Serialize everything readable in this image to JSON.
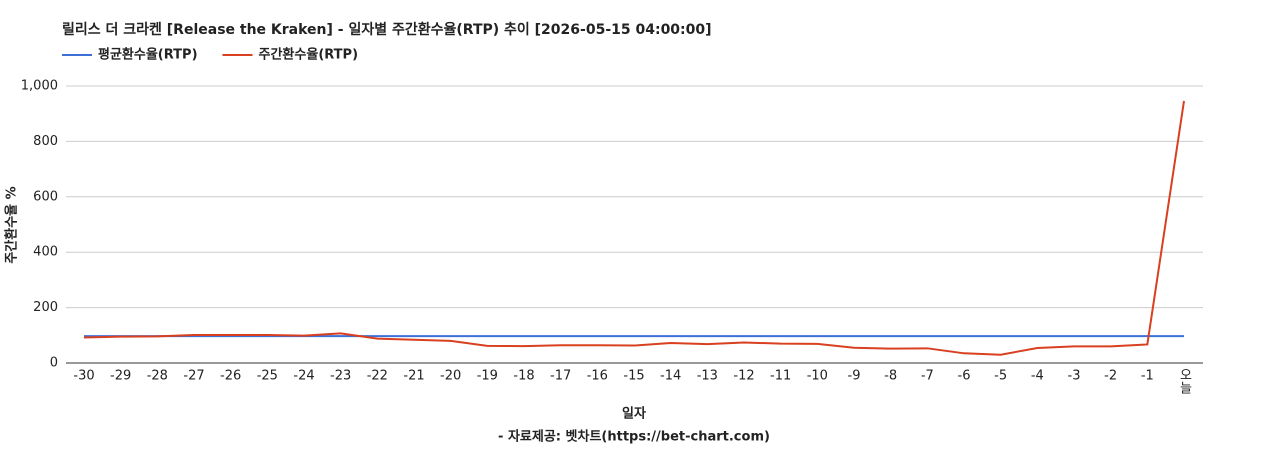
{
  "chart_data": {
    "type": "line",
    "title": "릴리스 더 크라켄 [Release the Kraken] - 일자별 주간환수율(RTP) 추이 [2026-05-15 04:00:00]",
    "x_label": "일자",
    "y_label": "주간환수율 %",
    "source": "- 자료제공: 벳차트(https://bet-chart.com)",
    "categories": [
      "-30",
      "-29",
      "-28",
      "-27",
      "-26",
      "-25",
      "-24",
      "-23",
      "-22",
      "-21",
      "-20",
      "-19",
      "-18",
      "-17",
      "-16",
      "-15",
      "-14",
      "-13",
      "-12",
      "-11",
      "-10",
      "-9",
      "-8",
      "-7",
      "-6",
      "-5",
      "-4",
      "-3",
      "-2",
      "-1",
      "오늘"
    ],
    "series": [
      {
        "name": "평균환수율(RTP)",
        "color": "#3c6fd8",
        "values": [
          97,
          97,
          97,
          97,
          97,
          97,
          97,
          97,
          97,
          97,
          97,
          97,
          97,
          97,
          97,
          97,
          97,
          97,
          97,
          97,
          97,
          97,
          97,
          97,
          97,
          97,
          97,
          97,
          97,
          97,
          97
        ]
      },
      {
        "name": "주간환수율(RTP)",
        "color": "#d8401f",
        "values": [
          92,
          95,
          96,
          101,
          101,
          101,
          99,
          107,
          88,
          84,
          80,
          62,
          61,
          64,
          64,
          63,
          72,
          68,
          74,
          70,
          69,
          55,
          52,
          53,
          35,
          30,
          54,
          60,
          60,
          67,
          946
        ]
      }
    ],
    "ylim": [
      0,
      1000
    ],
    "yticks": [
      0,
      200,
      400,
      600,
      800,
      {
        "value": 1000,
        "label": "1,000"
      }
    ],
    "grid": true,
    "legend": "top-left"
  }
}
